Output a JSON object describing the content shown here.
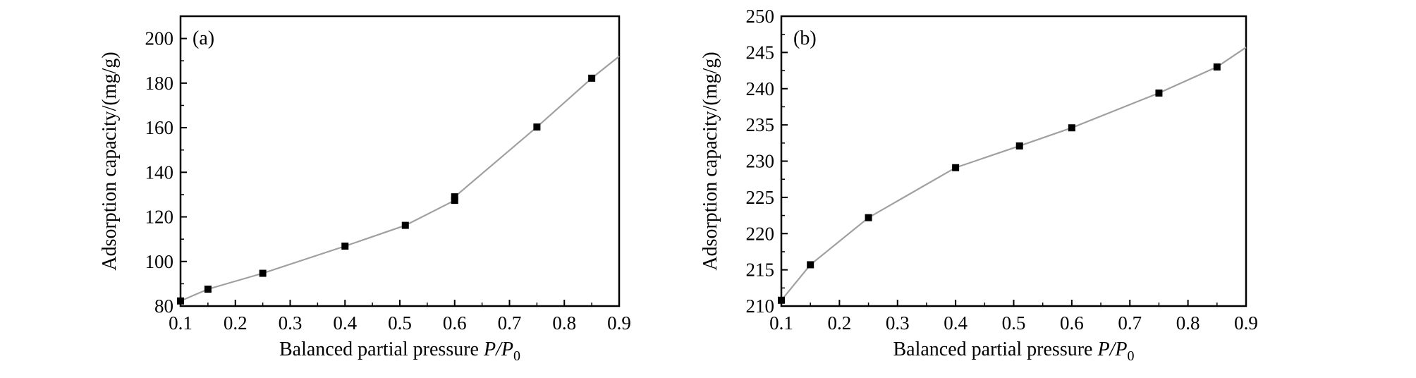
{
  "chart_data": [
    {
      "type": "line",
      "panel_label": "(a)",
      "xlabel": "Balanced partial pressure ",
      "xlabel_italic": "P/P",
      "xlabel_sub": "0",
      "ylabel": "Adsorption capacity/(mg/g)",
      "xlim": [
        0.1,
        0.9
      ],
      "ylim": [
        80,
        210
      ],
      "xticks": [
        0.1,
        0.2,
        0.3,
        0.4,
        0.5,
        0.6,
        0.7,
        0.8,
        0.9
      ],
      "xtick_labels": [
        "0.1",
        "0.2",
        "0.3",
        "0.4",
        "0.5",
        "0.6",
        "0.7",
        "0.8",
        "0.9"
      ],
      "yticks": [
        80,
        100,
        120,
        140,
        160,
        180,
        200
      ],
      "ytick_labels": [
        "80",
        "100",
        "120",
        "140",
        "160",
        "180",
        "200"
      ],
      "grid": false,
      "line_color": "#a0a0a0",
      "marker_color": "#000000",
      "series": [
        {
          "points": [
            {
              "x": 0.1,
              "y": 82.3
            },
            {
              "x": 0.15,
              "y": 87.6
            },
            {
              "x": 0.25,
              "y": 94.7
            },
            {
              "x": 0.4,
              "y": 106.9
            },
            {
              "x": 0.51,
              "y": 116.2
            },
            {
              "x": 0.6,
              "y": 127.4
            },
            {
              "x": 0.6,
              "y": 129.0
            },
            {
              "x": 0.75,
              "y": 160.3
            },
            {
              "x": 0.85,
              "y": 182.2
            }
          ],
          "line_end": {
            "x": 0.9,
            "y": 192.0
          }
        }
      ]
    },
    {
      "type": "line",
      "panel_label": "(b)",
      "xlabel": "Balanced partial pressure ",
      "xlabel_italic": "P/P",
      "xlabel_sub": "0",
      "ylabel": "Adsorption capacity/(mg/g)",
      "xlim": [
        0.1,
        0.9
      ],
      "ylim": [
        210,
        250
      ],
      "xticks": [
        0.1,
        0.2,
        0.3,
        0.4,
        0.5,
        0.6,
        0.7,
        0.8,
        0.9
      ],
      "xtick_labels": [
        "0.1",
        "0.2",
        "0.3",
        "0.4",
        "0.5",
        "0.6",
        "0.7",
        "0.8",
        "0.9"
      ],
      "yticks": [
        210,
        215,
        220,
        225,
        230,
        235,
        240,
        245,
        250
      ],
      "ytick_labels": [
        "210",
        "215",
        "220",
        "225",
        "230",
        "235",
        "240",
        "245",
        "250"
      ],
      "grid": false,
      "line_color": "#a0a0a0",
      "marker_color": "#000000",
      "series": [
        {
          "points": [
            {
              "x": 0.1,
              "y": 210.8
            },
            {
              "x": 0.15,
              "y": 215.7
            },
            {
              "x": 0.25,
              "y": 222.2
            },
            {
              "x": 0.4,
              "y": 229.1
            },
            {
              "x": 0.51,
              "y": 232.1
            },
            {
              "x": 0.6,
              "y": 234.6
            },
            {
              "x": 0.75,
              "y": 239.4
            },
            {
              "x": 0.85,
              "y": 243.0
            }
          ],
          "line_end": {
            "x": 0.9,
            "y": 245.7
          }
        }
      ]
    }
  ]
}
